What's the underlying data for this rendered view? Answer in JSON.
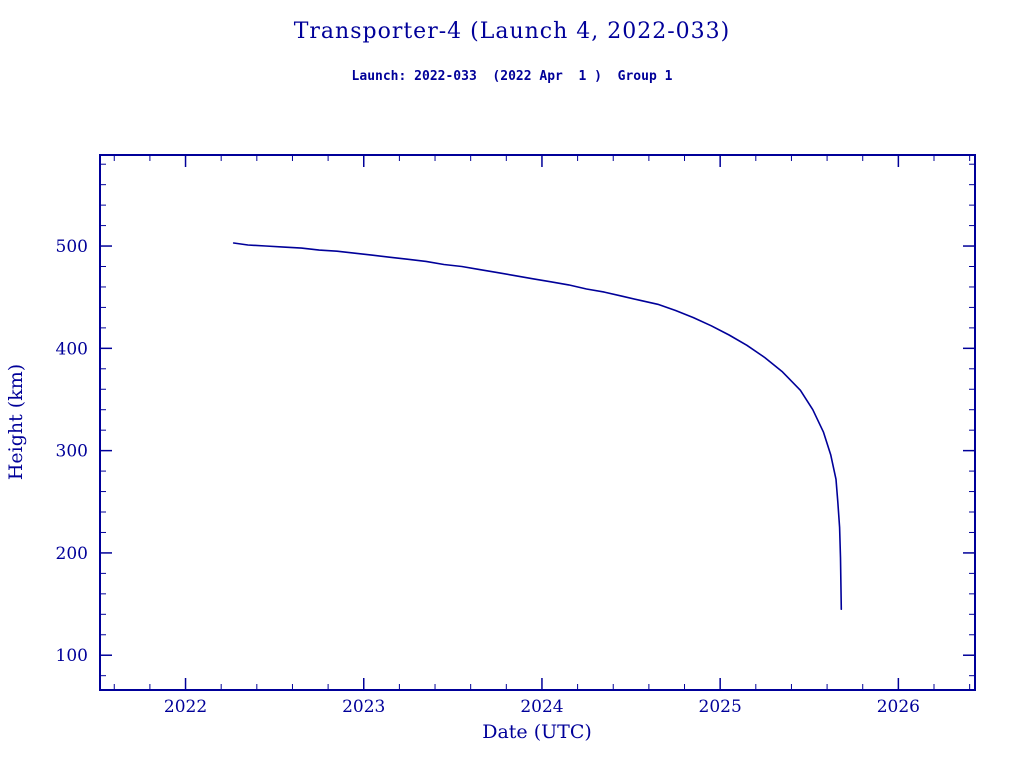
{
  "colors": {
    "accent": "#000099",
    "background": "#ffffff"
  },
  "chart_data": {
    "type": "line",
    "title": "Transporter-4 (Launch 4, 2022-033)",
    "subtitle": "Launch: 2022-033  (2022 Apr  1 )  Group 1",
    "xlabel": "Date (UTC)",
    "ylabel": "Height (km)",
    "xlim": [
      2021.52,
      2026.43
    ],
    "ylim": [
      66,
      589
    ],
    "xticks": [
      2022,
      2023,
      2024,
      2025,
      2026
    ],
    "yticks": [
      100,
      200,
      300,
      400,
      500
    ],
    "x_minor_step": 0.2,
    "y_minor_step": 20,
    "grid": false,
    "legend": "none",
    "line_color": "#000099",
    "series": [
      {
        "name": "orbital-height",
        "x": [
          2022.27,
          2022.35,
          2022.45,
          2022.55,
          2022.65,
          2022.75,
          2022.85,
          2022.95,
          2023.05,
          2023.15,
          2023.25,
          2023.35,
          2023.45,
          2023.55,
          2023.65,
          2023.75,
          2023.85,
          2023.95,
          2024.05,
          2024.15,
          2024.25,
          2024.35,
          2024.45,
          2024.55,
          2024.65,
          2024.75,
          2024.85,
          2024.95,
          2025.05,
          2025.15,
          2025.25,
          2025.35,
          2025.45,
          2025.52,
          2025.58,
          2025.62,
          2025.65,
          2025.66,
          2025.67,
          2025.675,
          2025.68
        ],
        "y": [
          503,
          501,
          500,
          499,
          498,
          496,
          495,
          493,
          491,
          489,
          487,
          485,
          482,
          480,
          477,
          474,
          471,
          468,
          465,
          462,
          458,
          455,
          451,
          447,
          443,
          437,
          430,
          422,
          413,
          403,
          391,
          377,
          359,
          340,
          318,
          296,
          272,
          250,
          225,
          195,
          145
        ]
      }
    ]
  }
}
